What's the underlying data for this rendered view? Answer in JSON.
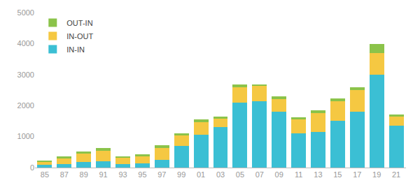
{
  "chart_data": {
    "type": "bar",
    "categories": [
      "85",
      "87",
      "89",
      "91",
      "93",
      "95",
      "97",
      "99",
      "01",
      "03",
      "05",
      "07",
      "09",
      "11",
      "13",
      "15",
      "17",
      "19",
      "21"
    ],
    "series": [
      {
        "name": "IN-IN",
        "color": "#3bbfd4",
        "values": [
          80,
          120,
          180,
          210,
          120,
          130,
          240,
          700,
          1050,
          1300,
          2100,
          2150,
          1800,
          1100,
          1150,
          1500,
          1800,
          3000,
          1350
        ]
      },
      {
        "name": "IN-OUT",
        "color": "#f5c842",
        "values": [
          120,
          180,
          260,
          340,
          200,
          240,
          380,
          330,
          420,
          280,
          500,
          480,
          400,
          450,
          600,
          650,
          700,
          700,
          300
        ]
      },
      {
        "name": "OUT-IN",
        "color": "#8bc34a",
        "values": [
          25,
          50,
          80,
          80,
          45,
          65,
          100,
          75,
          90,
          70,
          90,
          60,
          90,
          70,
          90,
          90,
          90,
          280,
          70
        ]
      }
    ],
    "stacked": true,
    "ylim": [
      0,
      5000
    ],
    "yticks": [
      0,
      1000,
      2000,
      3000,
      4000,
      5000
    ],
    "grid": false,
    "legend": "upper left"
  }
}
